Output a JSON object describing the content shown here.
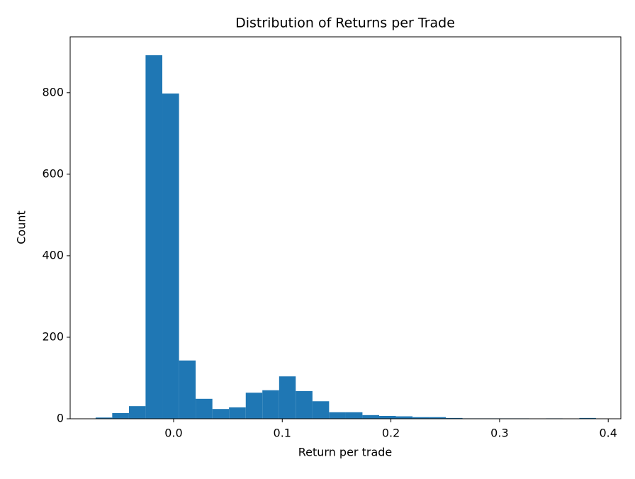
{
  "chart_data": {
    "type": "histogram",
    "title": "Distribution of Returns per Trade",
    "x_label": "Return per trade",
    "y_label": "Count",
    "color": "#1f77b4",
    "bins": [
      -0.0718,
      -0.0565,
      -0.0411,
      -0.0258,
      -0.0104,
      0.005,
      0.0203,
      0.0357,
      0.051,
      0.0664,
      0.0817,
      0.0971,
      0.1124,
      0.1278,
      0.1431,
      0.1585,
      0.1738,
      0.1892,
      0.2045,
      0.2199,
      0.2352,
      0.2506,
      0.2659,
      0.2813,
      0.2966,
      0.312,
      0.3273,
      0.3427,
      0.358,
      0.3734,
      0.3887
    ],
    "values": [
      3,
      14,
      31,
      892,
      798,
      143,
      49,
      24,
      28,
      64,
      70,
      104,
      68,
      43,
      16,
      16,
      9,
      7,
      6,
      4,
      4,
      2,
      1,
      1,
      1,
      1,
      0,
      1,
      0,
      2
    ],
    "xlim": [
      -0.0952,
      0.4116
    ],
    "ylim": [
      0,
      937
    ],
    "xticks": [
      {
        "value": 0,
        "label": "0.0"
      },
      0.1,
      0.2,
      0.3,
      0.4
    ],
    "yticks": [
      0,
      200,
      400,
      600,
      800
    ]
  }
}
